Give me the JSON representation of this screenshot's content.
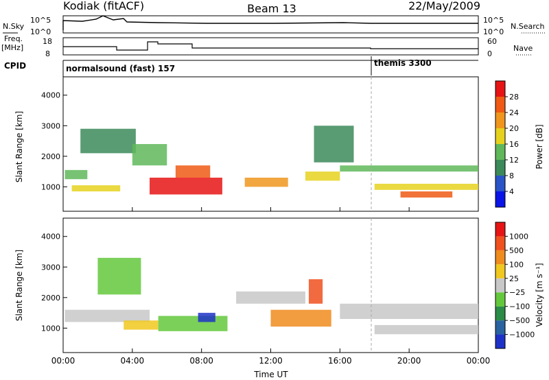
{
  "header": {
    "radar": "Kodiak (fitACF)",
    "beam": "Beam 13",
    "date": "22/May/2009"
  },
  "summary": {
    "left_labels": {
      "nsky": "N.Sky",
      "freq": "Freq.",
      "freq_unit": "[MHz]",
      "cpid": "CPID"
    },
    "right_labels": {
      "nsearch": "N.Search",
      "nave": "Nave"
    },
    "nsky_ticks": [
      "10^5",
      "10^0"
    ],
    "freq_ticks": [
      "18",
      "8"
    ],
    "nave_ticks": [
      "60",
      "0"
    ],
    "cpid_segments": [
      {
        "name": "normalsound (fast) 157",
        "start_hour": 0
      },
      {
        "name": "themis 3300",
        "start_hour": 18
      }
    ]
  },
  "chart_data": [
    {
      "type": "heatmap",
      "xlabel": "Time UT",
      "ylabel": "Slant Range [km]",
      "xlim": [
        0,
        24
      ],
      "ylim": [
        200,
        4600
      ],
      "x_tick_labels": [
        "00:00",
        "04:00",
        "08:00",
        "12:00",
        "16:00",
        "20:00",
        "00:00"
      ],
      "y_tick_labels": [
        "1000",
        "2000",
        "3000",
        "4000"
      ],
      "colorbar": {
        "label": "Power [dB]",
        "ticks": [
          "4",
          "8",
          "12",
          "16",
          "20",
          "24",
          "28"
        ],
        "colors": [
          "#0a14e6",
          "#2a55c8",
          "#3c8a5a",
          "#5fb85a",
          "#e6d21e",
          "#f0961e",
          "#f05a14",
          "#e61414"
        ]
      },
      "echo_regions": [
        {
          "t0": 0.1,
          "t1": 1.4,
          "r0": 1250,
          "r1": 1550,
          "level": 3
        },
        {
          "t0": 0.5,
          "t1": 3.3,
          "r0": 850,
          "r1": 1050,
          "level": 4
        },
        {
          "t0": 5.0,
          "t1": 9.2,
          "r0": 750,
          "r1": 1300,
          "level": 7
        },
        {
          "t0": 6.5,
          "t1": 8.5,
          "r0": 1300,
          "r1": 1700,
          "level": 6
        },
        {
          "t0": 1.0,
          "t1": 4.2,
          "r0": 2100,
          "r1": 2900,
          "level": 2
        },
        {
          "t0": 4.0,
          "t1": 6.0,
          "r0": 1700,
          "r1": 2400,
          "level": 3
        },
        {
          "t0": 10.5,
          "t1": 13.0,
          "r0": 1000,
          "r1": 1300,
          "level": 5
        },
        {
          "t0": 14.0,
          "t1": 16.0,
          "r0": 1200,
          "r1": 1500,
          "level": 4
        },
        {
          "t0": 14.5,
          "t1": 16.8,
          "r0": 1800,
          "r1": 3000,
          "level": 2
        },
        {
          "t0": 16.0,
          "t1": 24.0,
          "r0": 1500,
          "r1": 1700,
          "level": 3
        },
        {
          "t0": 18.0,
          "t1": 24.0,
          "r0": 900,
          "r1": 1100,
          "level": 4
        },
        {
          "t0": 19.5,
          "t1": 22.5,
          "r0": 650,
          "r1": 850,
          "level": 6
        }
      ]
    },
    {
      "type": "heatmap",
      "xlabel": "Time UT",
      "ylabel": "Slant Range [km]",
      "xlim": [
        0,
        24
      ],
      "ylim": [
        200,
        4600
      ],
      "x_tick_labels": [
        "00:00",
        "04:00",
        "08:00",
        "12:00",
        "16:00",
        "20:00",
        "00:00"
      ],
      "y_tick_labels": [
        "1000",
        "2000",
        "3000",
        "4000"
      ],
      "colorbar": {
        "label": "Velocity [m s⁻¹]",
        "ticks": [
          "1000",
          "500",
          "100",
          "25",
          "−25",
          "−100",
          "−500",
          "−1000"
        ],
        "colors": [
          "#1e32c8",
          "#2a64a0",
          "#2a8c46",
          "#64c83c",
          "#c8c8c8",
          "#f0c81e",
          "#f08c1e",
          "#f0501e",
          "#e61414"
        ]
      },
      "echo_regions": [
        {
          "t0": 0.1,
          "t1": 5.0,
          "r0": 1200,
          "r1": 1600,
          "level": 4
        },
        {
          "t0": 2.0,
          "t1": 4.5,
          "r0": 2100,
          "r1": 3300,
          "level": 3
        },
        {
          "t0": 3.5,
          "t1": 5.5,
          "r0": 950,
          "r1": 1250,
          "level": 5
        },
        {
          "t0": 5.5,
          "t1": 9.5,
          "r0": 900,
          "r1": 1400,
          "level": 3
        },
        {
          "t0": 7.8,
          "t1": 8.8,
          "r0": 1200,
          "r1": 1500,
          "level": 0
        },
        {
          "t0": 10.0,
          "t1": 14.0,
          "r0": 1800,
          "r1": 2200,
          "level": 4
        },
        {
          "t0": 12.0,
          "t1": 15.5,
          "r0": 1050,
          "r1": 1600,
          "level": 6
        },
        {
          "t0": 14.2,
          "t1": 15.0,
          "r0": 1800,
          "r1": 2600,
          "level": 7
        },
        {
          "t0": 16.0,
          "t1": 24.0,
          "r0": 1300,
          "r1": 1800,
          "level": 4
        },
        {
          "t0": 18.0,
          "t1": 24.0,
          "r0": 800,
          "r1": 1100,
          "level": 4
        }
      ]
    }
  ]
}
